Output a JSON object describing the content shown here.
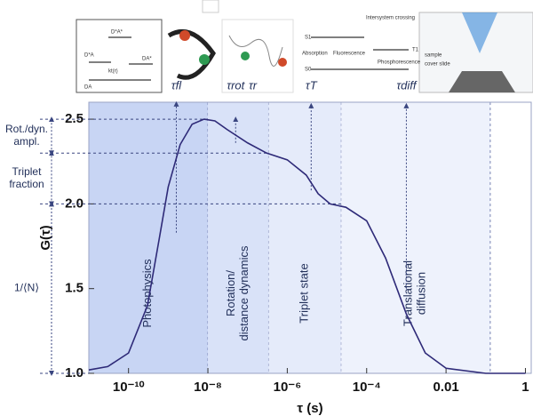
{
  "chart_data": {
    "type": "line",
    "x_label": "τ (s)",
    "y_label": "G(τ)",
    "x": [
      1e-11,
      3e-11,
      1e-10,
      3e-10,
      6e-10,
      1e-09,
      2e-09,
      4e-09,
      8e-09,
      1.5e-08,
      3e-08,
      1e-07,
      3e-07,
      1e-06,
      3e-06,
      6e-06,
      1.2e-05,
      3e-05,
      0.0001,
      0.0003,
      0.001,
      0.003,
      0.01,
      0.1,
      1
    ],
    "values": [
      1.02,
      1.04,
      1.12,
      1.4,
      1.8,
      2.1,
      2.35,
      2.47,
      2.5,
      2.49,
      2.44,
      2.36,
      2.3,
      2.26,
      2.17,
      2.06,
      2.0,
      1.98,
      1.9,
      1.68,
      1.35,
      1.12,
      1.03,
      1.0,
      1.0
    ],
    "color": "#2e2a78",
    "log_x": true,
    "xlim": [
      1e-11,
      1.4
    ],
    "ylim": [
      1,
      2.6
    ],
    "xticks": [
      {
        "value": 1e-10,
        "label": "10⁻¹⁰"
      },
      {
        "value": 1e-08,
        "label": "10⁻⁸"
      },
      {
        "value": 1e-06,
        "label": "10⁻⁶"
      },
      {
        "value": 0.0001,
        "label": "10⁻⁴"
      },
      0.01,
      1
    ],
    "yticks": [
      {
        "value": 1,
        "label": "1.0"
      },
      {
        "value": 1.5,
        "label": "1.5"
      },
      {
        "value": 2,
        "label": "2.0"
      },
      {
        "value": 2.5,
        "label": "2.5"
      }
    ],
    "regions": [
      {
        "lines": [
          "Photophysics"
        ],
        "start": 1e-11,
        "end": 1e-08,
        "color": "#c8d5f4"
      },
      {
        "lines": [
          "Rotation/",
          "distance dynamics"
        ],
        "start": 1e-08,
        "end": 3.4e-07,
        "color": "#d9e2f8"
      },
      {
        "lines": [
          "Triplet state"
        ],
        "start": 3.4e-07,
        "end": 2.3e-05,
        "color": "#e5ebfa"
      },
      {
        "lines": [
          "Translational",
          "diffusion"
        ],
        "start": 2.3e-05,
        "end": 0.13,
        "color": "#eef2fc"
      }
    ],
    "brackets": [
      {
        "lines": [
          "Rot./dyn.",
          "ampl."
        ],
        "from": 2.3,
        "to": 2.5
      },
      {
        "lines": [
          "Triplet",
          "fraction"
        ],
        "from": 2.0,
        "to": 2.3
      },
      {
        "lines": [
          "1/⟨N⟩"
        ],
        "from": 1.0,
        "to": 2.0
      }
    ],
    "arrows": [
      {
        "x": 1.6e-09,
        "from": 1.83,
        "to": 2.59
      },
      {
        "x": 5e-08,
        "from": 2.36,
        "to": 2.5
      },
      {
        "x": 4e-06,
        "from": 2.08,
        "to": 2.58
      },
      {
        "x": 0.001,
        "from": 1.5,
        "to": 2.58
      }
    ],
    "tau_labels": [
      {
        "label": "τfl",
        "x": 1.6e-09
      },
      {
        "label": "τrot",
        "x": 5e-08
      },
      {
        "label": "τr",
        "x": 1.35e-07
      },
      {
        "label": "τT",
        "x": 4e-06
      },
      {
        "label": "τdiff",
        "x": 0.001
      }
    ],
    "insets": {
      "energy": [
        "D*A*",
        "D*A",
        "DA*",
        "DA",
        "kt(r)"
      ],
      "jablonski": [
        "S1",
        "S0",
        "T1",
        "Intersystem crossing",
        "Absorption",
        "Fluorescence",
        "Phosphorescence"
      ],
      "microscope": [
        "sample",
        "cover slide"
      ]
    }
  }
}
